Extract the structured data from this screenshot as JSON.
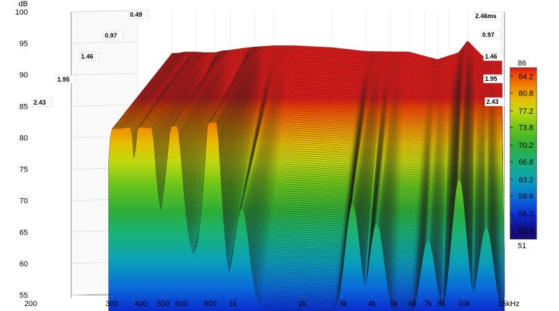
{
  "chart_data": {
    "type": "area",
    "subtype": "waterfall-3d",
    "ylabel": "dB",
    "xunit": "kHz",
    "ylim": [
      55,
      100
    ],
    "y_ticks": [
      "100",
      "95",
      "90",
      "85",
      "80",
      "75",
      "70",
      "65",
      "60",
      "55"
    ],
    "x_ticks": [
      "200",
      "300",
      "400",
      "500",
      "600",
      "800",
      "1k",
      "2k",
      "3k",
      "4k",
      "5k",
      "6k",
      "7k",
      "8k",
      "10k",
      "15kHz"
    ],
    "x_tick_values": [
      200,
      300,
      400,
      500,
      600,
      800,
      1000,
      2000,
      3000,
      4000,
      5000,
      6000,
      7000,
      8000,
      10000,
      15000
    ],
    "z_unit": "ms",
    "time_ticks_left": [
      "0.49",
      "0.97",
      "1.46",
      "1.95",
      "2.43"
    ],
    "time_ticks_right": [
      "2.46ms",
      "0.97",
      "1.46",
      "1.95",
      "2.43"
    ],
    "colorbar": {
      "max_label": "86",
      "min_label": "51",
      "ticks": [
        "84.2",
        "80.8",
        "77.2",
        "73.8",
        "70.2",
        "66.8",
        "63.2",
        "59.8",
        "56.2",
        "52.8"
      ]
    },
    "front_slice": {
      "freq": [
        290,
        300,
        320,
        350,
        400,
        450,
        500,
        550,
        600,
        700,
        800,
        1000,
        1300,
        2000,
        3000,
        5000,
        7000,
        9000,
        10000,
        12000,
        15000
      ],
      "db": [
        90.3,
        93.2,
        93.2,
        93.4,
        93.4,
        93.3,
        93.3,
        93.6,
        93.7,
        94.0,
        94.2,
        94.4,
        94.4,
        94.1,
        93.5,
        93.4,
        92.2,
        93.3,
        95.2,
        92.7,
        93.1
      ]
    },
    "slice_count": 120
  }
}
